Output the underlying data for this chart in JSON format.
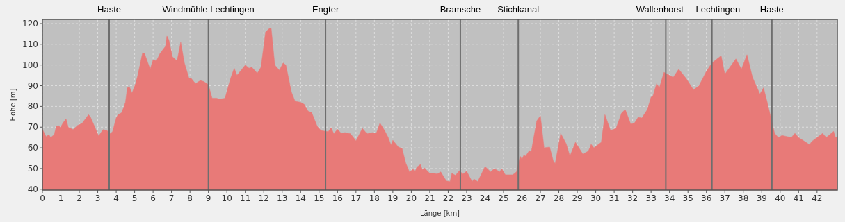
{
  "chart_data": {
    "type": "area",
    "xlabel": "Länge [km]",
    "ylabel": "Höhe [m]",
    "x": [
      0.0,
      0.2,
      0.35,
      0.45,
      0.64,
      0.75,
      0.87,
      0.98,
      1.1,
      1.28,
      1.4,
      1.66,
      1.9,
      2.15,
      2.5,
      2.6,
      2.87,
      3.05,
      3.28,
      3.5,
      3.66,
      3.8,
      4.0,
      4.1,
      4.3,
      4.5,
      4.6,
      4.7,
      4.86,
      5.05,
      5.17,
      5.43,
      5.54,
      5.84,
      6.0,
      6.18,
      6.37,
      6.67,
      6.75,
      6.86,
      7.05,
      7.3,
      7.5,
      7.7,
      7.95,
      8.07,
      8.3,
      8.56,
      8.75,
      9.0,
      9.2,
      9.45,
      9.6,
      9.9,
      10.2,
      10.4,
      10.55,
      11.0,
      11.2,
      11.35,
      11.65,
      11.85,
      12.1,
      12.3,
      12.4,
      12.6,
      12.85,
      13.05,
      13.2,
      13.5,
      13.7,
      14.0,
      14.2,
      14.4,
      14.6,
      14.9,
      15.1,
      15.35,
      15.5,
      15.65,
      15.8,
      16.0,
      16.2,
      16.4,
      16.7,
      17.0,
      17.35,
      17.6,
      17.9,
      18.1,
      18.3,
      18.55,
      18.75,
      18.9,
      19.0,
      19.3,
      19.5,
      19.7,
      19.9,
      20.1,
      20.2,
      20.3,
      20.5,
      20.6,
      20.7,
      21.0,
      21.2,
      21.4,
      21.6,
      21.9,
      22.1,
      22.2,
      22.4,
      22.6,
      22.8,
      23.0,
      23.3,
      23.4,
      23.6,
      24.0,
      24.3,
      24.5,
      24.8,
      24.9,
      25.1,
      25.5,
      25.7,
      25.9,
      26.0,
      26.1,
      26.2,
      26.4,
      26.5,
      26.8,
      27.0,
      27.2,
      27.5,
      27.7,
      27.8,
      28.1,
      28.4,
      28.6,
      28.9,
      29.3,
      29.6,
      29.75,
      29.9,
      30.3,
      30.5,
      30.8,
      31.1,
      31.4,
      31.6,
      31.9,
      32.1,
      32.3,
      32.5,
      32.8,
      33.0,
      33.1,
      33.3,
      33.45,
      33.7,
      34.2,
      34.5,
      34.9,
      35.3,
      35.6,
      36.0,
      36.3,
      36.8,
      37.0,
      37.6,
      37.9,
      38.2,
      38.5,
      38.9,
      39.1,
      39.3,
      39.7,
      39.9,
      40.1,
      40.6,
      40.8,
      41.0,
      41.6,
      41.7,
      42.3,
      42.5,
      42.9,
      43.0,
      43.1
    ],
    "series": [
      {
        "color": "#e87a78",
        "values": [
          69,
          65.4,
          66.4,
          65,
          66.4,
          70.4,
          70.8,
          69.8,
          71.8,
          74,
          70,
          68.8,
          70.8,
          71.8,
          76,
          75,
          69.4,
          65.7,
          68.8,
          68.4,
          66.8,
          67.8,
          74.4,
          76,
          77,
          82,
          88.8,
          89.8,
          86.5,
          91,
          95,
          106,
          105.5,
          98,
          102.5,
          102,
          105.5,
          109,
          114,
          112,
          104,
          102,
          111,
          101,
          93.5,
          93.5,
          91,
          92.5,
          92,
          90.5,
          84,
          84,
          83.5,
          84,
          93.5,
          98.5,
          95,
          100,
          98.5,
          99,
          96,
          99,
          116,
          117.6,
          118,
          100,
          97.5,
          101,
          100,
          87,
          82.5,
          82,
          81,
          77.8,
          77,
          70.4,
          68.4,
          68,
          67.8,
          69.8,
          66.8,
          69,
          67,
          67.4,
          66.8,
          63.4,
          69.4,
          66.8,
          67.4,
          67,
          72,
          68.4,
          65,
          61.4,
          63.7,
          60.4,
          59.7,
          52.7,
          48.4,
          49.7,
          48.4,
          50.7,
          52,
          49.4,
          50.4,
          47.7,
          47.7,
          47.4,
          48.4,
          44,
          43.7,
          47.7,
          46.7,
          49,
          47.4,
          48.7,
          43.7,
          45,
          43.7,
          51,
          48.4,
          50,
          48.4,
          50,
          47,
          47,
          48.4,
          56,
          54.4,
          56.4,
          56,
          58.7,
          58,
          73,
          75.5,
          60,
          60.4,
          53.7,
          52.4,
          67,
          62,
          56,
          62.7,
          57,
          58.4,
          61.7,
          60,
          62.7,
          76,
          68.4,
          69.4,
          76.8,
          78.5,
          71.4,
          72,
          74.8,
          74.4,
          78.5,
          84.5,
          85,
          91,
          89,
          96.5,
          94,
          98,
          93.5,
          88,
          90,
          97,
          101,
          104.5,
          95.5,
          103,
          98,
          105,
          94,
          86,
          89,
          82,
          67,
          65,
          66,
          65,
          67,
          65,
          61.5,
          63,
          67,
          65,
          68,
          65,
          65.5
        ]
      }
    ],
    "xlim": [
      0,
      43.1
    ],
    "ylim": [
      39.6,
      122
    ],
    "xticks": [
      0,
      1,
      2,
      3,
      4,
      5,
      6,
      7,
      8,
      9,
      10,
      11,
      12,
      13,
      14,
      15,
      16,
      17,
      18,
      19,
      20,
      21,
      22,
      23,
      24,
      25,
      26,
      27,
      28,
      29,
      30,
      31,
      32,
      33,
      34,
      35,
      36,
      37,
      38,
      39,
      40,
      41,
      42
    ],
    "yticks": [
      40,
      50,
      60,
      70,
      80,
      90,
      100,
      110,
      120
    ],
    "grid": true,
    "ref_lines": [
      {
        "axis": "x",
        "value": 3.62,
        "label": "Haste",
        "color": "#6e6e6e"
      },
      {
        "axis": "x",
        "value": 9.0,
        "label": "Windmühle Lechtingen",
        "color": "#6e6e6e"
      },
      {
        "axis": "x",
        "value": 15.35,
        "label": "Engter",
        "color": "#6e6e6e"
      },
      {
        "axis": "x",
        "value": 22.66,
        "label": "Bramsche",
        "color": "#6e6e6e"
      },
      {
        "axis": "x",
        "value": 25.8,
        "label": "Stichkanal",
        "color": "#6e6e6e"
      },
      {
        "axis": "x",
        "value": 33.8,
        "label": "Wallenhorst",
        "color": "#6e6e6e"
      },
      {
        "axis": "x",
        "value": 36.3,
        "label": "Lechtingen",
        "color": "#6e6e6e"
      },
      {
        "axis": "x",
        "value": 39.55,
        "label": "Haste",
        "color": "#6e6e6e"
      }
    ]
  }
}
